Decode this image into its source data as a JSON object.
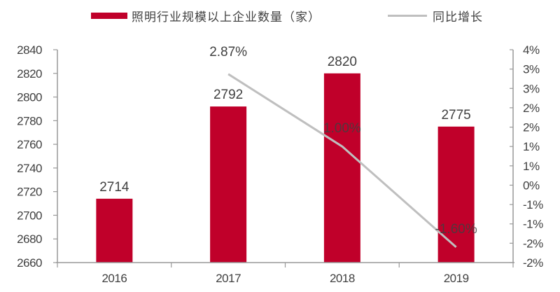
{
  "legend": {
    "bar_label": "照明行业规模以上企业数量（家）",
    "line_label": "同比增长"
  },
  "colors": {
    "bar": "#c0002a",
    "line": "#bfbfbf",
    "axis": "#999999",
    "text": "#404040"
  },
  "chart_data": {
    "type": "bar+line",
    "title": "",
    "categories": [
      "2016",
      "2017",
      "2018",
      "2019"
    ],
    "series": [
      {
        "name": "照明行业规模以上企业数量（家）",
        "type": "bar",
        "axis": "left",
        "values": [
          2714,
          2792,
          2820,
          2775
        ],
        "labels": [
          "2714",
          "2792",
          "2820",
          "2775"
        ]
      },
      {
        "name": "同比增长",
        "type": "line",
        "axis": "right",
        "x": [
          "2017",
          "2018",
          "2019"
        ],
        "values": [
          2.87,
          1.0,
          -1.6
        ],
        "labels": [
          "2.87%",
          "1.00%",
          "-1.60%"
        ]
      }
    ],
    "left_axis": {
      "ylim": [
        2660,
        2840
      ],
      "ticks": [
        "2840",
        "2820",
        "2800",
        "2780",
        "2760",
        "2740",
        "2720",
        "2700",
        "2680",
        "2660"
      ]
    },
    "right_axis": {
      "ylim": [
        -2.0,
        3.5
      ],
      "ticks": [
        "4%",
        "3%",
        "3%",
        "2%",
        "2%",
        "1%",
        "1%",
        "0%",
        "-1%",
        "-1%",
        "-2%",
        "-2%"
      ]
    },
    "xlabel": "",
    "ylabel": "",
    "grid": false,
    "legend_position": "top"
  }
}
